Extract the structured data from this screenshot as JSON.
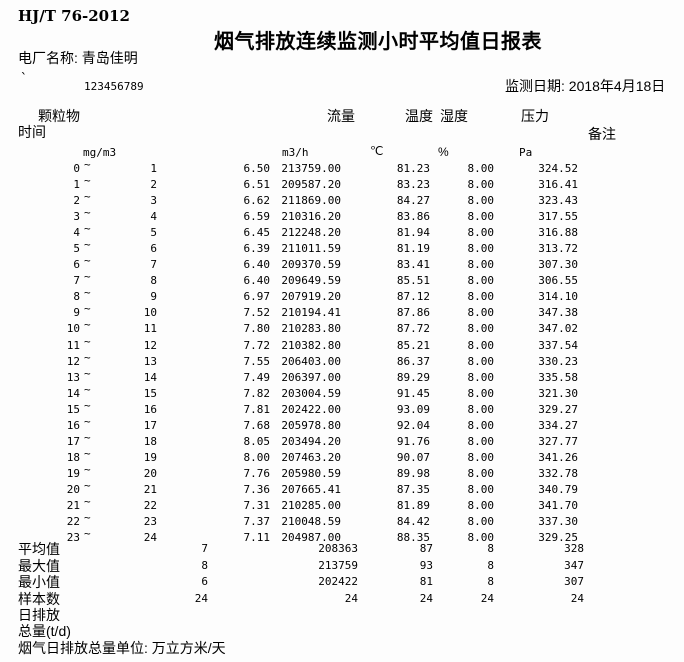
{
  "header": {
    "standard": "HJ/T 76-2012",
    "title": "烟气排放连续监测小时平均值日报表",
    "plant_label": "电厂名称:",
    "plant_name": "青岛佳明",
    "serial_mark": "`",
    "serial_number": "123456789",
    "date_label": "监测日期:",
    "date_value": "2018年4月18日"
  },
  "table": {
    "columns": {
      "time": "时间",
      "pm": "颗粒物",
      "flow": "流量",
      "temp": "温度",
      "humidity": "湿度",
      "pressure": "压力",
      "remark": "备注"
    },
    "units": {
      "pm": "mg/m3",
      "flow": "m3/h",
      "temp": "℃",
      "humidity": "%",
      "pressure": "Pa"
    },
    "tilde": "~",
    "rows": [
      {
        "start": "0",
        "end": "1",
        "pm": "6.50",
        "flow": "213759.00",
        "temp": "81.23",
        "humidity": "8.00",
        "pressure": "324.52"
      },
      {
        "start": "1",
        "end": "2",
        "pm": "6.51",
        "flow": "209587.20",
        "temp": "83.23",
        "humidity": "8.00",
        "pressure": "316.41"
      },
      {
        "start": "2",
        "end": "3",
        "pm": "6.62",
        "flow": "211869.00",
        "temp": "84.27",
        "humidity": "8.00",
        "pressure": "323.43"
      },
      {
        "start": "3",
        "end": "4",
        "pm": "6.59",
        "flow": "210316.20",
        "temp": "83.86",
        "humidity": "8.00",
        "pressure": "317.55"
      },
      {
        "start": "4",
        "end": "5",
        "pm": "6.45",
        "flow": "212248.20",
        "temp": "81.94",
        "humidity": "8.00",
        "pressure": "316.88"
      },
      {
        "start": "5",
        "end": "6",
        "pm": "6.39",
        "flow": "211011.59",
        "temp": "81.19",
        "humidity": "8.00",
        "pressure": "313.72"
      },
      {
        "start": "6",
        "end": "7",
        "pm": "6.40",
        "flow": "209370.59",
        "temp": "83.41",
        "humidity": "8.00",
        "pressure": "307.30"
      },
      {
        "start": "7",
        "end": "8",
        "pm": "6.40",
        "flow": "209649.59",
        "temp": "85.51",
        "humidity": "8.00",
        "pressure": "306.55"
      },
      {
        "start": "8",
        "end": "9",
        "pm": "6.97",
        "flow": "207919.20",
        "temp": "87.12",
        "humidity": "8.00",
        "pressure": "314.10"
      },
      {
        "start": "9",
        "end": "10",
        "pm": "7.52",
        "flow": "210194.41",
        "temp": "87.86",
        "humidity": "8.00",
        "pressure": "347.38"
      },
      {
        "start": "10",
        "end": "11",
        "pm": "7.80",
        "flow": "210283.80",
        "temp": "87.72",
        "humidity": "8.00",
        "pressure": "347.02"
      },
      {
        "start": "11",
        "end": "12",
        "pm": "7.72",
        "flow": "210382.80",
        "temp": "85.21",
        "humidity": "8.00",
        "pressure": "337.54"
      },
      {
        "start": "12",
        "end": "13",
        "pm": "7.55",
        "flow": "206403.00",
        "temp": "86.37",
        "humidity": "8.00",
        "pressure": "330.23"
      },
      {
        "start": "13",
        "end": "14",
        "pm": "7.49",
        "flow": "206397.00",
        "temp": "89.29",
        "humidity": "8.00",
        "pressure": "335.58"
      },
      {
        "start": "14",
        "end": "15",
        "pm": "7.82",
        "flow": "203004.59",
        "temp": "91.45",
        "humidity": "8.00",
        "pressure": "321.30"
      },
      {
        "start": "15",
        "end": "16",
        "pm": "7.81",
        "flow": "202422.00",
        "temp": "93.09",
        "humidity": "8.00",
        "pressure": "329.27"
      },
      {
        "start": "16",
        "end": "17",
        "pm": "7.68",
        "flow": "205978.80",
        "temp": "92.04",
        "humidity": "8.00",
        "pressure": "334.27"
      },
      {
        "start": "17",
        "end": "18",
        "pm": "8.05",
        "flow": "203494.20",
        "temp": "91.76",
        "humidity": "8.00",
        "pressure": "327.77"
      },
      {
        "start": "18",
        "end": "19",
        "pm": "8.00",
        "flow": "207463.20",
        "temp": "90.07",
        "humidity": "8.00",
        "pressure": "341.26"
      },
      {
        "start": "19",
        "end": "20",
        "pm": "7.76",
        "flow": "205980.59",
        "temp": "89.98",
        "humidity": "8.00",
        "pressure": "332.78"
      },
      {
        "start": "20",
        "end": "21",
        "pm": "7.36",
        "flow": "207665.41",
        "temp": "87.35",
        "humidity": "8.00",
        "pressure": "340.79"
      },
      {
        "start": "21",
        "end": "22",
        "pm": "7.31",
        "flow": "210285.00",
        "temp": "81.89",
        "humidity": "8.00",
        "pressure": "341.70"
      },
      {
        "start": "22",
        "end": "23",
        "pm": "7.37",
        "flow": "210048.59",
        "temp": "84.42",
        "humidity": "8.00",
        "pressure": "337.30"
      },
      {
        "start": "23",
        "end": "24",
        "pm": "7.11",
        "flow": "204987.00",
        "temp": "88.35",
        "humidity": "8.00",
        "pressure": "329.25"
      }
    ],
    "summary": [
      {
        "label": "平均值",
        "pm": "7",
        "flow": "208363",
        "temp": "87",
        "humidity": "8",
        "pressure": "328"
      },
      {
        "label": "最大值",
        "pm": "8",
        "flow": "213759",
        "temp": "93",
        "humidity": "8",
        "pressure": "347"
      },
      {
        "label": "最小值",
        "pm": "6",
        "flow": "202422",
        "temp": "81",
        "humidity": "8",
        "pressure": "307"
      },
      {
        "label": "样本数",
        "pm": "24",
        "flow": "24",
        "temp": "24",
        "humidity": "24",
        "pressure": "24"
      }
    ]
  },
  "footer": {
    "daily_emission_label": "日排放",
    "total_label": "总量(t/d)",
    "unit_note": "烟气日排放总量单位: 万立方米/天"
  }
}
